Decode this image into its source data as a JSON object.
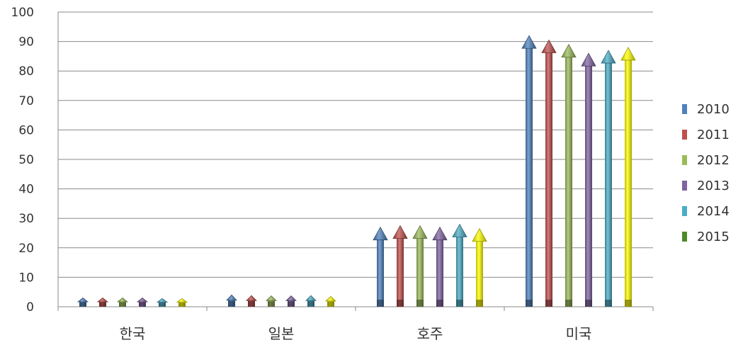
{
  "chart_data": {
    "type": "bar",
    "bar_style": "3d-arrow",
    "categories": [
      "한국",
      "일본",
      "호주",
      "미국"
    ],
    "series": [
      {
        "name": "2010",
        "color": "#4f81bd",
        "values": [
          3.0,
          4.0,
          27.0,
          92.0
        ]
      },
      {
        "name": "2011",
        "color": "#c0504d",
        "values": [
          3.0,
          3.8,
          27.5,
          90.5
        ]
      },
      {
        "name": "2012",
        "color": "#9bbb59",
        "values": [
          3.0,
          3.7,
          27.5,
          89.0
        ]
      },
      {
        "name": "2013",
        "color": "#8064a2",
        "values": [
          3.0,
          3.7,
          27.0,
          86.0
        ]
      },
      {
        "name": "2014",
        "color": "#4bacc6",
        "values": [
          2.8,
          3.8,
          28.0,
          87.0
        ]
      },
      {
        "name": "2015",
        "color": "#ffff00",
        "legend_color": "#4e8a2a",
        "values": [
          2.8,
          3.5,
          26.5,
          88.0
        ]
      }
    ],
    "title": "",
    "xlabel": "",
    "ylabel": "",
    "ylim": [
      0,
      100
    ],
    "yticks": [
      "0",
      "10",
      "20",
      "30",
      "40",
      "50",
      "60",
      "70",
      "80",
      "90",
      "100"
    ],
    "grid": "horizontal",
    "legend_position": "right"
  }
}
